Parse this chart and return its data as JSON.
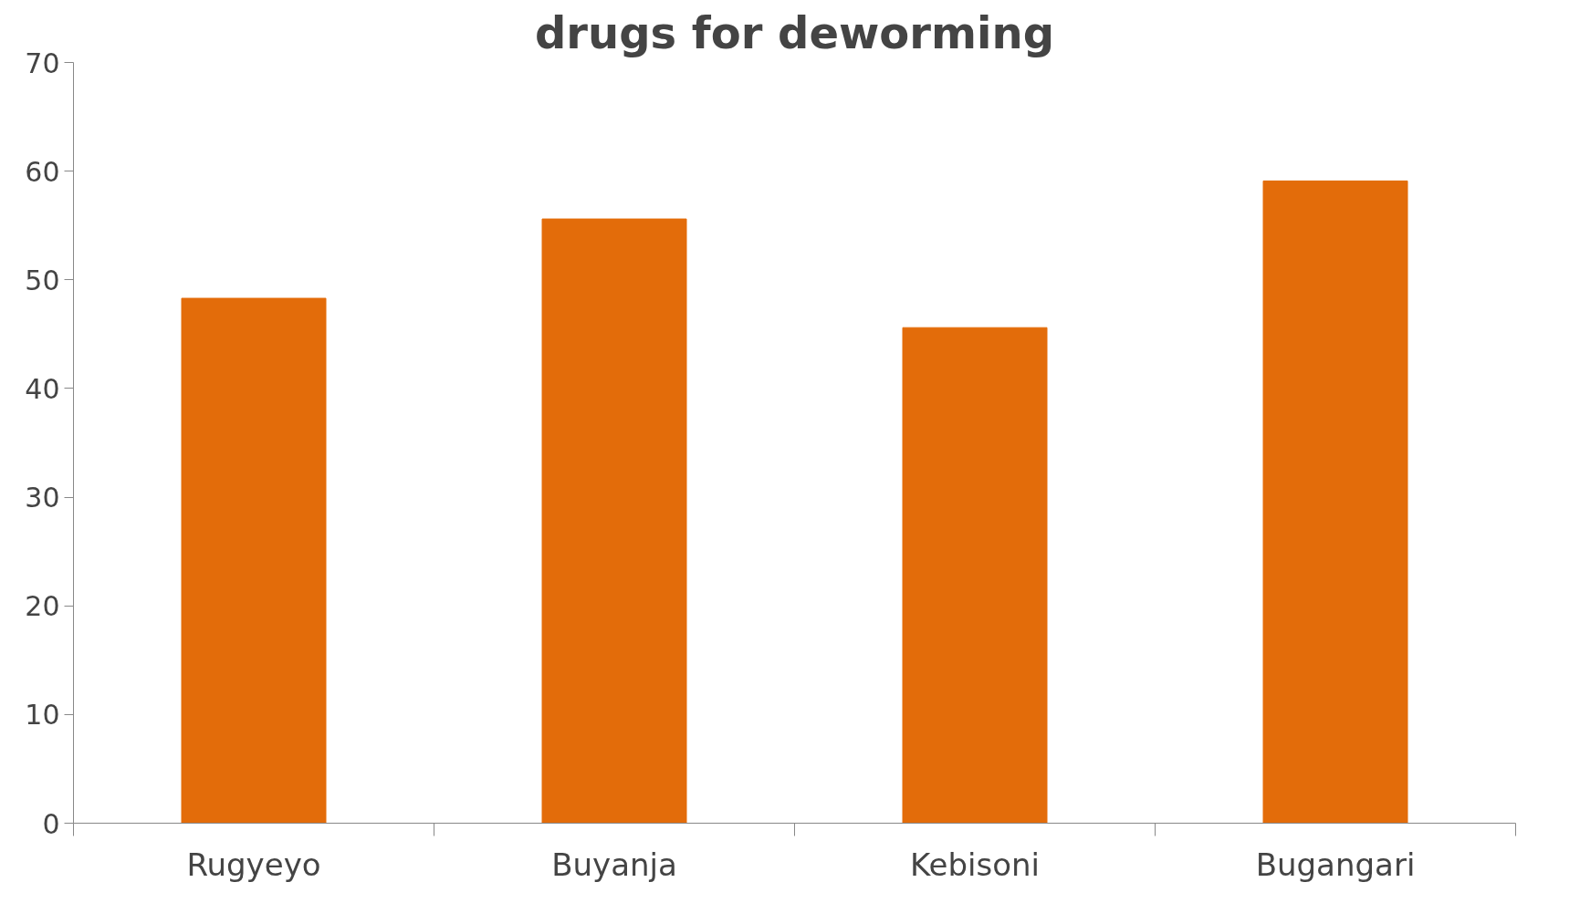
{
  "chart_data": {
    "type": "bar",
    "title": "drugs for deworming",
    "categories": [
      "Rugyeyo",
      "Buyanja",
      "Kebisoni",
      "Bugangari"
    ],
    "values": [
      48.3,
      55.6,
      45.6,
      59.1
    ],
    "color": "#e36c0a",
    "ylim": [
      0,
      70
    ],
    "yticks": [
      0,
      10,
      20,
      30,
      40,
      50,
      60,
      70
    ],
    "grid": false
  }
}
